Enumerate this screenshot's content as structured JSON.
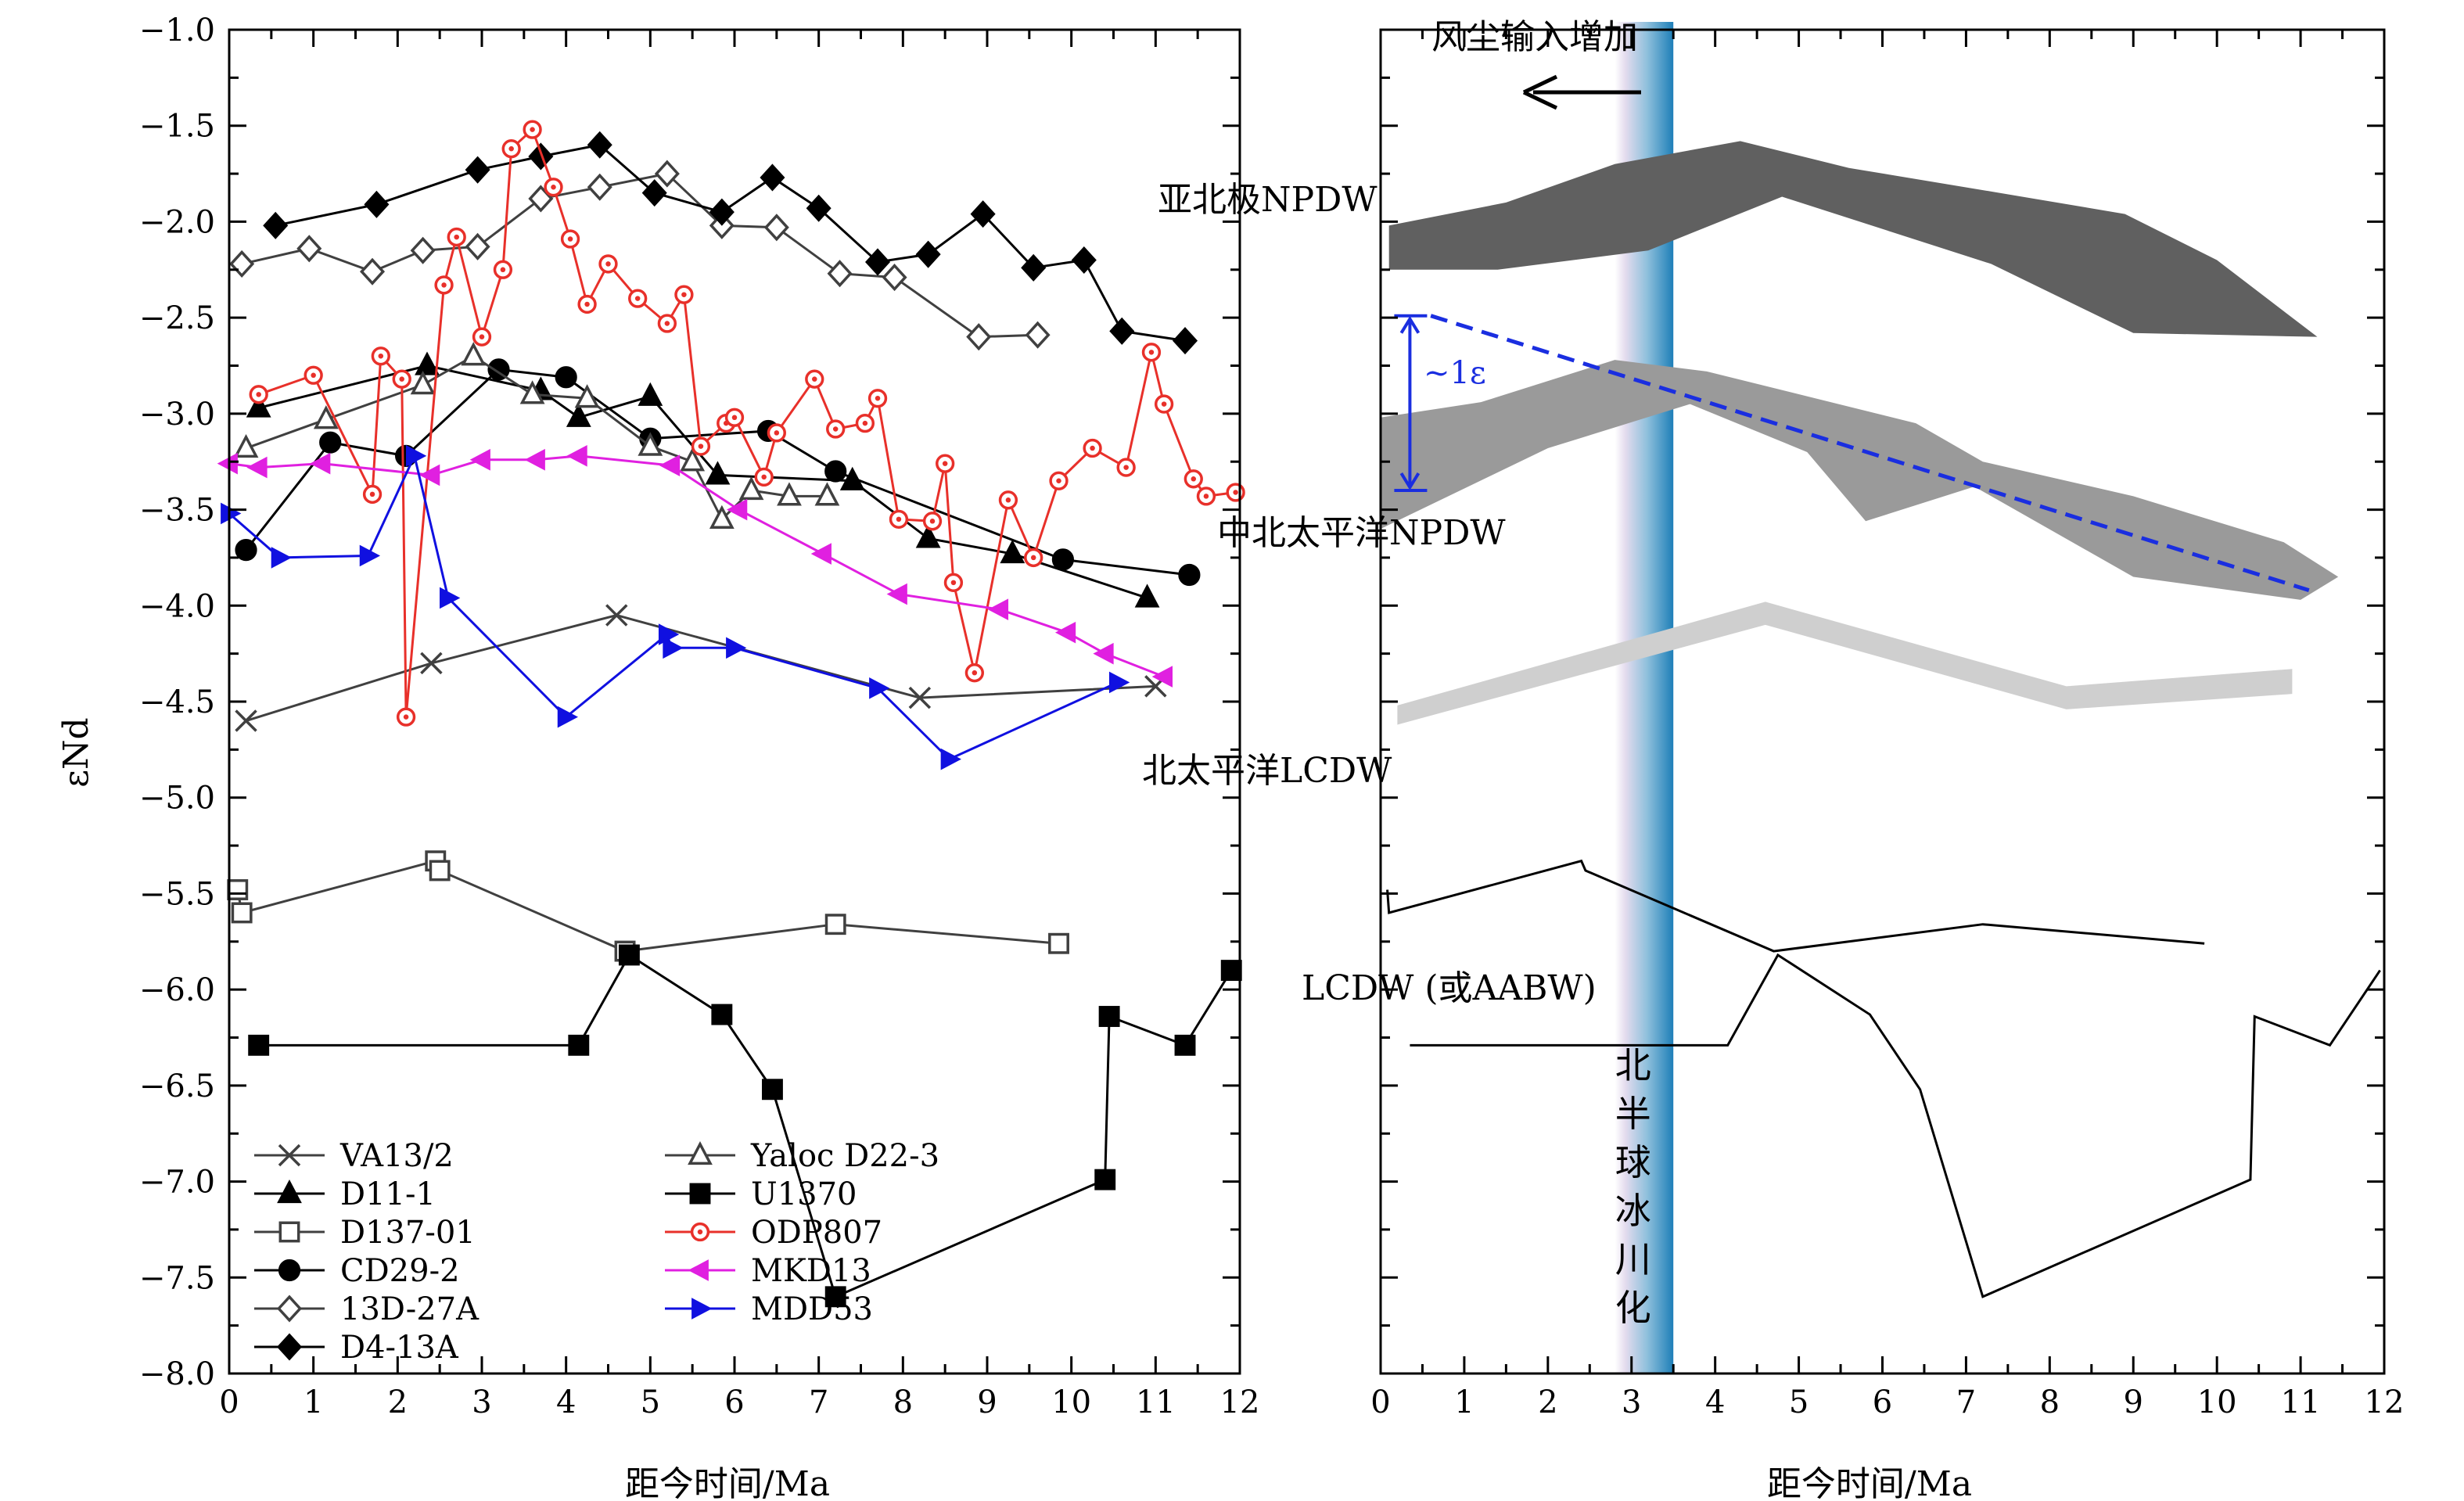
{
  "chart_data": [
    {
      "type": "line",
      "ylabel": "εNd",
      "xlabel": "距今时间/Ma",
      "xlim": [
        0,
        12
      ],
      "ylim": [
        -8.0,
        -1.0
      ],
      "xticks": [
        "0",
        "1",
        "2",
        "3",
        "4",
        "5",
        "6",
        "7",
        "8",
        "9",
        "10",
        "11",
        "12"
      ],
      "yticks": [
        "-1.0",
        "-1.5",
        "-2.0",
        "-2.5",
        "-3.0",
        "-3.5",
        "-4.0",
        "-4.5",
        "-5.0",
        "-5.5",
        "-6.0",
        "-6.5",
        "-7.0",
        "-7.5",
        "-8.0"
      ],
      "legend_position": "bottom-left",
      "series": [
        {
          "name": "VA13/2",
          "marker": "x",
          "color": "#404040",
          "x": [
            0.2,
            2.4,
            4.6,
            8.2,
            11.0
          ],
          "y": [
            -4.6,
            -4.3,
            -4.05,
            -4.48,
            -4.42
          ]
        },
        {
          "name": "D11-1",
          "marker": "triangle-filled",
          "color": "#000000",
          "x": [
            0.35,
            2.35,
            3.7,
            4.15,
            5.0,
            5.8,
            7.4,
            8.3,
            9.3,
            10.9
          ],
          "y": [
            -2.97,
            -2.75,
            -2.88,
            -3.02,
            -2.91,
            -3.32,
            -3.35,
            -3.65,
            -3.73,
            -3.96
          ]
        },
        {
          "name": "D137-01",
          "marker": "square-open",
          "color": "#404040",
          "x": [
            0.1,
            0.15,
            2.45,
            2.5,
            4.7,
            7.2,
            9.85
          ],
          "y": [
            -5.48,
            -5.6,
            -5.33,
            -5.38,
            -5.8,
            -5.66,
            -5.76
          ]
        },
        {
          "name": "CD29-2",
          "marker": "circle-filled",
          "color": "#000000",
          "x": [
            0.2,
            1.2,
            2.1,
            3.2,
            4.0,
            5.0,
            6.4,
            7.2,
            9.9,
            11.4
          ],
          "y": [
            -3.71,
            -3.15,
            -3.22,
            -2.77,
            -2.81,
            -3.13,
            -3.09,
            -3.3,
            -3.76,
            -3.84
          ]
        },
        {
          "name": "13D-27A",
          "marker": "diamond-open",
          "color": "#404040",
          "x": [
            0.15,
            0.95,
            1.7,
            2.3,
            2.95,
            3.7,
            4.4,
            5.2,
            5.85,
            6.5,
            7.25,
            7.9,
            8.9,
            9.6
          ],
          "y": [
            -2.22,
            -2.14,
            -2.26,
            -2.15,
            -2.13,
            -1.88,
            -1.82,
            -1.75,
            -2.02,
            -2.03,
            -2.27,
            -2.29,
            -2.6,
            -2.59
          ]
        },
        {
          "name": "D4-13A",
          "marker": "diamond-filled",
          "color": "#000000",
          "x": [
            0.55,
            1.75,
            2.95,
            3.7,
            4.4,
            5.05,
            5.85,
            6.45,
            7.0,
            7.7,
            8.3,
            8.95,
            9.55,
            10.15,
            10.6,
            11.35
          ],
          "y": [
            -2.02,
            -1.91,
            -1.73,
            -1.66,
            -1.6,
            -1.85,
            -1.95,
            -1.77,
            -1.93,
            -2.21,
            -2.17,
            -1.96,
            -2.24,
            -2.2,
            -2.57,
            -2.62
          ]
        },
        {
          "name": "Yaloc D22-3",
          "marker": "triangle-open",
          "color": "#404040",
          "x": [
            0.2,
            1.15,
            2.3,
            2.9,
            3.6,
            4.25,
            5.0,
            5.5,
            5.85,
            6.2,
            6.65,
            7.1
          ],
          "y": [
            -3.18,
            -3.03,
            -2.85,
            -2.7,
            -2.9,
            -2.92,
            -3.17,
            -3.25,
            -3.55,
            -3.4,
            -3.43,
            -3.43
          ]
        },
        {
          "name": "U1370",
          "marker": "square-filled",
          "color": "#000000",
          "x": [
            0.35,
            4.15,
            4.75,
            5.85,
            6.45,
            7.2,
            10.4,
            10.45,
            11.35,
            11.9
          ],
          "y": [
            -6.29,
            -6.29,
            -5.82,
            -6.13,
            -6.52,
            -7.6,
            -6.99,
            -6.14,
            -6.29,
            -5.9
          ]
        },
        {
          "name": "ODP807",
          "marker": "circle-open",
          "color": "#e8302a",
          "x": [
            0.35,
            1.0,
            1.7,
            1.8,
            2.05,
            2.1,
            2.55,
            2.7,
            3.0,
            3.25,
            3.35,
            3.6,
            3.85,
            4.05,
            4.25,
            4.5,
            4.85,
            5.2,
            5.4,
            5.6,
            5.9,
            6.0,
            6.35,
            6.5,
            6.95,
            7.2,
            7.55,
            7.7,
            7.95,
            8.35,
            8.5,
            8.6,
            8.85,
            9.25,
            9.55,
            9.85,
            10.25,
            10.65,
            10.95,
            11.1,
            11.45,
            11.6,
            11.95
          ],
          "y": [
            -2.9,
            -2.8,
            -3.42,
            -2.7,
            -2.82,
            -4.58,
            -2.33,
            -2.08,
            -2.6,
            -2.25,
            -1.62,
            -1.52,
            -1.82,
            -2.09,
            -2.43,
            -2.22,
            -2.4,
            -2.53,
            -2.38,
            -3.17,
            -3.05,
            -3.02,
            -3.33,
            -3.1,
            -2.82,
            -3.08,
            -3.05,
            -2.92,
            -3.55,
            -3.56,
            -3.26,
            -3.88,
            -4.35,
            -3.45,
            -3.75,
            -3.35,
            -3.18,
            -3.28,
            -2.68,
            -2.95,
            -3.34,
            -3.43,
            -3.41
          ]
        },
        {
          "name": "MKD13",
          "marker": "triangle-left",
          "color": "#e020e0",
          "x": [
            0.0,
            0.35,
            1.1,
            2.4,
            3.0,
            3.65,
            4.15,
            5.25,
            6.05,
            7.05,
            7.95,
            9.15,
            9.95,
            10.4,
            11.1
          ],
          "y": [
            -3.26,
            -3.28,
            -3.26,
            -3.32,
            -3.24,
            -3.24,
            -3.22,
            -3.27,
            -3.5,
            -3.73,
            -3.94,
            -4.02,
            -4.14,
            -4.25,
            -4.37
          ]
        },
        {
          "name": "MDD53",
          "marker": "triangle-right",
          "color": "#1010e0",
          "x": [
            0.0,
            0.6,
            1.65,
            2.2,
            2.6,
            4.0,
            5.2,
            5.25,
            6.0,
            7.7,
            8.55,
            10.55
          ],
          "y": [
            -3.52,
            -3.75,
            -3.74,
            -3.22,
            -3.96,
            -4.58,
            -4.15,
            -4.22,
            -4.22,
            -4.43,
            -4.8,
            -4.4
          ]
        }
      ]
    },
    {
      "type": "area",
      "xlabel": "距今时间/Ma",
      "xlim": [
        0,
        12
      ],
      "ylim": [
        -8.0,
        -1.0
      ],
      "xticks": [
        "0",
        "1",
        "2",
        "3",
        "4",
        "5",
        "6",
        "7",
        "8",
        "9",
        "10",
        "11",
        "12"
      ],
      "annotations": {
        "dust": "风尘输入增加",
        "arrow": "←",
        "glaciation": "北半球冰川化",
        "one_eps": "~1ε",
        "subarctic": "亚北极NPDW",
        "central": "中北太平洋NPDW",
        "lcdw_np": "北太平洋LCDW",
        "lcdw": "LCDW (或AABW)"
      },
      "colors": {
        "subarctic": "#606060",
        "central": "#9a9a9a",
        "lcdw_band": "#cfcfcf",
        "trend": "#1a2ee0",
        "glaciation_bar": "#2f8fc0"
      },
      "glaciation_interval": [
        2.8,
        3.5
      ],
      "bands": [
        {
          "name": "subarctic",
          "upper": [
            [
              0.1,
              -2.02
            ],
            [
              1.5,
              -1.9
            ],
            [
              2.8,
              -1.7
            ],
            [
              4.3,
              -1.58
            ],
            [
              5.6,
              -1.72
            ],
            [
              7.4,
              -1.85
            ],
            [
              8.9,
              -1.96
            ],
            [
              10.0,
              -2.2
            ],
            [
              11.2,
              -2.6
            ]
          ],
          "lower": [
            [
              11.2,
              -2.6
            ],
            [
              9.0,
              -2.58
            ],
            [
              7.3,
              -2.22
            ],
            [
              4.8,
              -1.87
            ],
            [
              3.2,
              -2.15
            ],
            [
              1.4,
              -2.25
            ],
            [
              0.1,
              -2.25
            ]
          ]
        },
        {
          "name": "central",
          "upper": [
            [
              0.0,
              -3.02
            ],
            [
              1.2,
              -2.94
            ],
            [
              2.8,
              -2.72
            ],
            [
              3.9,
              -2.78
            ],
            [
              6.4,
              -3.05
            ],
            [
              7.2,
              -3.25
            ],
            [
              9.0,
              -3.43
            ],
            [
              10.8,
              -3.67
            ],
            [
              11.45,
              -3.85
            ]
          ],
          "lower": [
            [
              11.45,
              -3.85
            ],
            [
              11.0,
              -3.97
            ],
            [
              9.0,
              -3.85
            ],
            [
              7.1,
              -3.38
            ],
            [
              5.8,
              -3.56
            ],
            [
              5.1,
              -3.2
            ],
            [
              3.7,
              -2.95
            ],
            [
              2.0,
              -3.18
            ],
            [
              0.0,
              -3.6
            ]
          ]
        },
        {
          "name": "lcdw_band",
          "upper": [
            [
              0.2,
              -4.52
            ],
            [
              4.6,
              -3.98
            ],
            [
              8.2,
              -4.42
            ],
            [
              10.9,
              -4.33
            ]
          ],
          "lower": [
            [
              10.9,
              -4.46
            ],
            [
              8.2,
              -4.54
            ],
            [
              4.6,
              -4.1
            ],
            [
              0.2,
              -4.62
            ]
          ]
        }
      ],
      "trend_line": [
        [
          0.6,
          -2.49
        ],
        [
          11.1,
          -3.92
        ]
      ],
      "one_eps_bracket": {
        "x": 0.35,
        "y_top": -2.49,
        "y_bottom": -3.4
      },
      "lcdw_lines": [
        [
          [
            0.08,
            -5.48
          ],
          [
            0.1,
            -5.6
          ],
          [
            2.4,
            -5.33
          ],
          [
            2.45,
            -5.38
          ],
          [
            4.7,
            -5.8
          ],
          [
            7.2,
            -5.66
          ],
          [
            9.85,
            -5.76
          ]
        ],
        [
          [
            0.35,
            -6.29
          ],
          [
            4.15,
            -6.29
          ],
          [
            4.75,
            -5.82
          ],
          [
            5.85,
            -6.13
          ],
          [
            6.45,
            -6.52
          ],
          [
            7.2,
            -7.6
          ],
          [
            10.4,
            -6.99
          ],
          [
            10.45,
            -6.14
          ],
          [
            11.35,
            -6.29
          ],
          [
            11.95,
            -5.9
          ]
        ]
      ]
    }
  ]
}
